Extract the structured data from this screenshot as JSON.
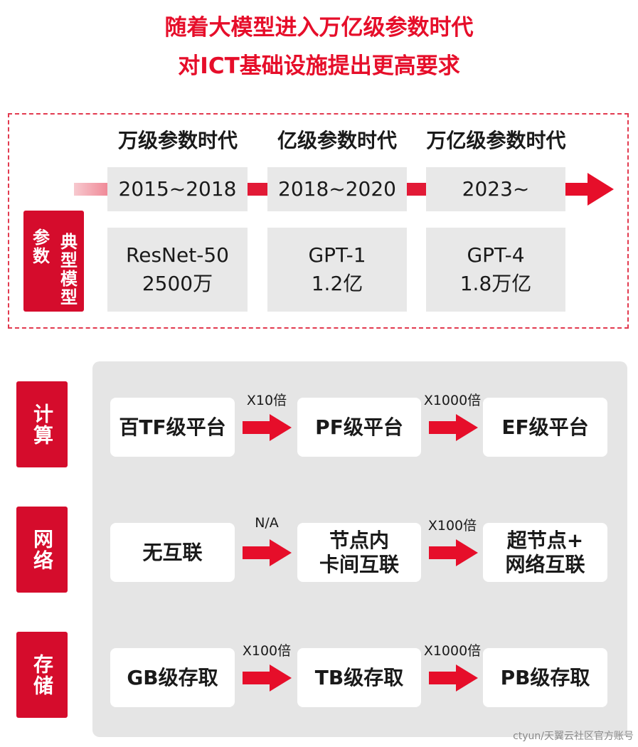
{
  "title_line1": "随着大模型进入万亿级参数时代",
  "title_line2": "对ICT基础设施提出更高要求",
  "eras": [
    {
      "label": "万级参数时代",
      "years": "2015~2018",
      "model": "ResNet-50",
      "params": "2500万"
    },
    {
      "label": "亿级参数时代",
      "years": "2018~2020",
      "model": "GPT-1",
      "params": "1.2亿"
    },
    {
      "label": "万亿级参数时代",
      "years": "2023~",
      "model": "GPT-4",
      "params": "1.8万亿"
    }
  ],
  "model_tag_col1": "典型模型",
  "model_tag_col2": "参数",
  "rows": [
    {
      "label": "计算",
      "stages": [
        "百TF级平台",
        "PF级平台",
        "EF级平台"
      ],
      "multipliers": [
        "X10倍",
        "X1000倍"
      ]
    },
    {
      "label": "网络",
      "stages": [
        "无互联",
        "节点内\n卡间互联",
        "超节点+\n网络互联"
      ],
      "multipliers": [
        "N/A",
        "X100倍"
      ]
    },
    {
      "label": "存储",
      "stages": [
        "GB级存取",
        "TB级存取",
        "PB级存取"
      ],
      "multipliers": [
        "X100倍",
        "X1000倍"
      ]
    }
  ],
  "footer": "ctyun/天翼云社区官方账号",
  "colors": {
    "accent": "#e60e2a",
    "tag": "#d50c2c",
    "box": "#e8e8e8",
    "panel": "#e5e5e5"
  }
}
